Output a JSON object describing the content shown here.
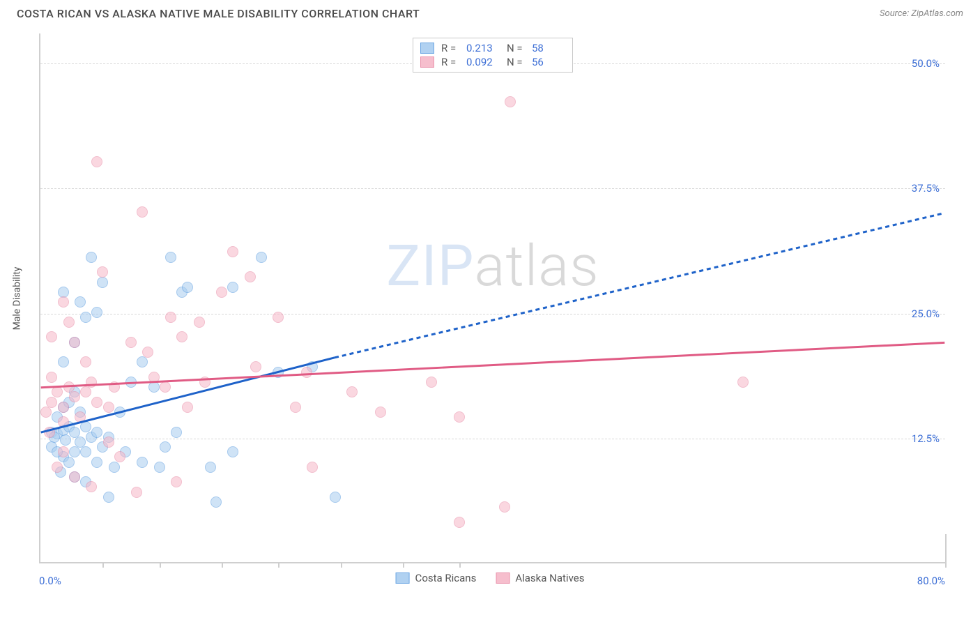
{
  "header": {
    "title": "COSTA RICAN VS ALASKA NATIVE MALE DISABILITY CORRELATION CHART",
    "source_label": "Source: ZipAtlas.com"
  },
  "chart": {
    "type": "scatter",
    "ylabel": "Male Disability",
    "background_color": "#ffffff",
    "grid_color": "#d8d8d8",
    "axis_color": "#cfcfcf",
    "tick_label_color": "#3d6fd6",
    "xlim": [
      0,
      80
    ],
    "ylim": [
      0,
      53
    ],
    "x_origin_label": "0.0%",
    "x_max_label": "80.0%",
    "yticks": [
      {
        "value": 12.5,
        "label": "12.5%"
      },
      {
        "value": 25.0,
        "label": "25.0%"
      },
      {
        "value": 37.5,
        "label": "37.5%"
      },
      {
        "value": 50.0,
        "label": "50.0%"
      }
    ],
    "xticks_minor": [
      5.5,
      10.5,
      16,
      21,
      26.5,
      32,
      37
    ],
    "marker_radius": 8,
    "marker_stroke_width": 1,
    "series": [
      {
        "name": "Costa Ricans",
        "fill": "#a8cdf0",
        "stroke": "#5d9de0",
        "fill_opacity": 0.55,
        "trend": {
          "x1": 0,
          "y1": 13.0,
          "x2": 26,
          "y2": 20.5,
          "x3": 80,
          "y3": 35.0,
          "solid_end_x": 26,
          "stroke": "#1e62c9",
          "width": 3,
          "dash": "6,5"
        },
        "R": "0.213",
        "N": "58",
        "points": [
          [
            1.0,
            13.0
          ],
          [
            1.5,
            12.8
          ],
          [
            1.2,
            12.5
          ],
          [
            2.0,
            13.2
          ],
          [
            2.2,
            12.2
          ],
          [
            2.5,
            13.5
          ],
          [
            2.0,
            10.5
          ],
          [
            1.0,
            11.5
          ],
          [
            1.5,
            11.0
          ],
          [
            3.0,
            13.0
          ],
          [
            3.5,
            12.0
          ],
          [
            3.0,
            11.0
          ],
          [
            2.5,
            10.0
          ],
          [
            1.8,
            9.0
          ],
          [
            1.5,
            14.5
          ],
          [
            2.0,
            15.5
          ],
          [
            2.5,
            16.0
          ],
          [
            3.5,
            15.0
          ],
          [
            3.0,
            17.0
          ],
          [
            4.0,
            13.5
          ],
          [
            4.5,
            12.5
          ],
          [
            4.0,
            11.0
          ],
          [
            5.0,
            13.0
          ],
          [
            5.5,
            11.5
          ],
          [
            5.0,
            10.0
          ],
          [
            6.0,
            12.5
          ],
          [
            6.5,
            9.5
          ],
          [
            4.0,
            8.0
          ],
          [
            3.0,
            8.5
          ],
          [
            6.0,
            6.5
          ],
          [
            7.5,
            11.0
          ],
          [
            9.0,
            10.0
          ],
          [
            10.5,
            9.5
          ],
          [
            11.0,
            11.5
          ],
          [
            12.0,
            13.0
          ],
          [
            15.5,
            6.0
          ],
          [
            15.0,
            9.5
          ],
          [
            17.0,
            11.0
          ],
          [
            21.0,
            19.0
          ],
          [
            24.0,
            19.5
          ],
          [
            26.0,
            6.5
          ],
          [
            2.0,
            20.0
          ],
          [
            3.0,
            22.0
          ],
          [
            4.0,
            24.5
          ],
          [
            3.5,
            26.0
          ],
          [
            2.0,
            27.0
          ],
          [
            5.0,
            25.0
          ],
          [
            5.5,
            28.0
          ],
          [
            4.5,
            30.5
          ],
          [
            11.5,
            30.5
          ],
          [
            12.5,
            27.0
          ],
          [
            13.0,
            27.5
          ],
          [
            17.0,
            27.5
          ],
          [
            19.5,
            30.5
          ],
          [
            9.0,
            20.0
          ],
          [
            8.0,
            18.0
          ],
          [
            10.0,
            17.5
          ],
          [
            7.0,
            15.0
          ]
        ]
      },
      {
        "name": "Alaska Natives",
        "fill": "#f6b8c8",
        "stroke": "#e889a5",
        "fill_opacity": 0.55,
        "trend": {
          "x1": 0,
          "y1": 17.5,
          "x2": 80,
          "y2": 22.0,
          "stroke": "#e05b84",
          "width": 3
        },
        "R": "0.092",
        "N": "56",
        "points": [
          [
            0.5,
            15.0
          ],
          [
            1.0,
            16.0
          ],
          [
            1.5,
            17.0
          ],
          [
            1.0,
            18.5
          ],
          [
            2.0,
            15.5
          ],
          [
            2.5,
            17.5
          ],
          [
            3.0,
            16.5
          ],
          [
            2.0,
            14.0
          ],
          [
            3.5,
            14.5
          ],
          [
            4.0,
            17.0
          ],
          [
            4.5,
            18.0
          ],
          [
            4.0,
            20.0
          ],
          [
            3.0,
            22.0
          ],
          [
            2.5,
            24.0
          ],
          [
            5.0,
            16.0
          ],
          [
            6.0,
            15.5
          ],
          [
            6.5,
            17.5
          ],
          [
            6.0,
            12.0
          ],
          [
            7.0,
            10.5
          ],
          [
            8.0,
            22.0
          ],
          [
            9.5,
            21.0
          ],
          [
            10.0,
            18.5
          ],
          [
            11.0,
            17.5
          ],
          [
            11.5,
            24.5
          ],
          [
            12.5,
            22.5
          ],
          [
            13.0,
            15.5
          ],
          [
            14.0,
            24.0
          ],
          [
            14.5,
            18.0
          ],
          [
            16.0,
            27.0
          ],
          [
            17.0,
            31.0
          ],
          [
            18.5,
            28.5
          ],
          [
            19.0,
            19.5
          ],
          [
            21.0,
            24.5
          ],
          [
            22.5,
            15.5
          ],
          [
            23.5,
            19.0
          ],
          [
            24.0,
            9.5
          ],
          [
            27.5,
            17.0
          ],
          [
            30.0,
            15.0
          ],
          [
            34.5,
            18.0
          ],
          [
            37.0,
            14.5
          ],
          [
            37.0,
            4.0
          ],
          [
            41.0,
            5.5
          ],
          [
            41.5,
            46.0
          ],
          [
            62.0,
            18.0
          ],
          [
            5.0,
            40.0
          ],
          [
            9.0,
            35.0
          ],
          [
            2.0,
            11.0
          ],
          [
            1.5,
            9.5
          ],
          [
            3.0,
            8.5
          ],
          [
            4.5,
            7.5
          ],
          [
            8.5,
            7.0
          ],
          [
            12.0,
            8.0
          ],
          [
            1.0,
            22.5
          ],
          [
            2.0,
            26.0
          ],
          [
            5.5,
            29.0
          ],
          [
            0.8,
            13.0
          ]
        ]
      }
    ],
    "legend_top": {
      "R_label": "R =",
      "N_label": "N ="
    },
    "watermark": {
      "part1": "ZIP",
      "part2": "atlas"
    }
  }
}
